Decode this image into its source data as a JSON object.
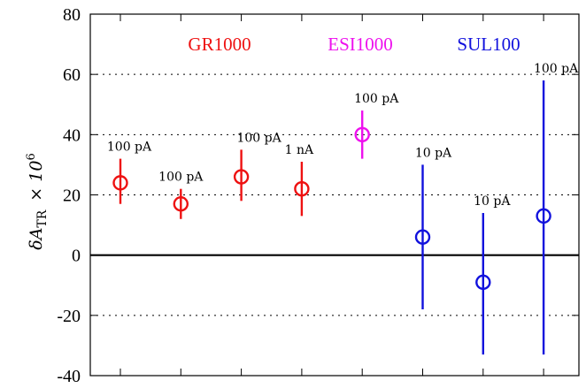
{
  "chart_data": {
    "type": "scatter",
    "ylabel_main": "δA",
    "ylabel_sub": "TR",
    "ylabel_times": "× 10",
    "ylabel_exp": "6",
    "ylim": [
      -40,
      80
    ],
    "yticks": [
      -40,
      -20,
      0,
      20,
      40,
      60,
      80
    ],
    "ytick_labels": [
      "-40",
      "-20",
      "0",
      "20",
      "40",
      "60",
      "80"
    ],
    "grid": "horizontal-dotted",
    "reference_line": 0,
    "series": [
      {
        "name": "GR1000",
        "color": "#ee1111",
        "points": [
          {
            "x": 1,
            "y": 24,
            "err_low": 17,
            "err_high": 32,
            "label": "100 pA"
          },
          {
            "x": 2,
            "y": 17,
            "err_low": 12,
            "err_high": 22,
            "label": "100 pA"
          },
          {
            "x": 3,
            "y": 26,
            "err_low": 18,
            "err_high": 35,
            "label": "100 pA"
          },
          {
            "x": 4,
            "y": 22,
            "err_low": 13,
            "err_high": 31,
            "label": "1 nA"
          }
        ]
      },
      {
        "name": "ESI1000",
        "color": "#ee11ee",
        "points": [
          {
            "x": 5,
            "y": 40,
            "err_low": 32,
            "err_high": 48,
            "label": "100 pA"
          }
        ]
      },
      {
        "name": "SUL100",
        "color": "#1111dd",
        "points": [
          {
            "x": 6,
            "y": 6,
            "err_low": -18,
            "err_high": 30,
            "label": "10 pA"
          },
          {
            "x": 7,
            "y": -9,
            "err_low": -33,
            "err_high": 14,
            "label": "10 pA"
          },
          {
            "x": 8,
            "y": 13,
            "err_low": -33,
            "err_high": 58,
            "label": "100 pA"
          }
        ]
      }
    ]
  }
}
